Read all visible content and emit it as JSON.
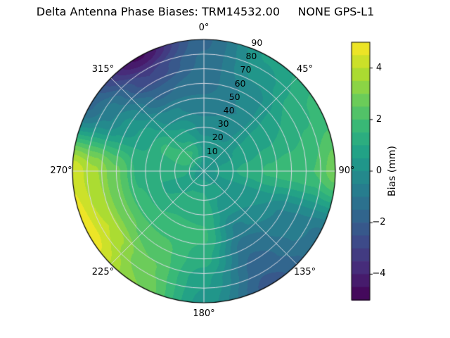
{
  "figure": {
    "title": "Delta Antenna Phase Biases: TRM14532.00     NONE GPS-L1",
    "background_color": "#ffffff"
  },
  "polar_axes": {
    "grid_color": "#dcdce6",
    "outline_color": "#000000",
    "radial_label_angle_deg": 22.5,
    "angular_labels": [
      {
        "angle_deg": 0,
        "label": "0°"
      },
      {
        "angle_deg": 45,
        "label": "45°"
      },
      {
        "angle_deg": 90,
        "label": "90°"
      },
      {
        "angle_deg": 135,
        "label": "135°"
      },
      {
        "angle_deg": 180,
        "label": "180°"
      },
      {
        "angle_deg": 225,
        "label": "225°"
      },
      {
        "angle_deg": 270,
        "label": "270°"
      },
      {
        "angle_deg": 315,
        "label": "315°"
      }
    ],
    "radial_ticks": [
      {
        "value": 10,
        "label": "10"
      },
      {
        "value": 20,
        "label": "20"
      },
      {
        "value": 30,
        "label": "30"
      },
      {
        "value": 40,
        "label": "40"
      },
      {
        "value": 50,
        "label": "50"
      },
      {
        "value": 60,
        "label": "60"
      },
      {
        "value": 70,
        "label": "70"
      },
      {
        "value": 80,
        "label": "80"
      },
      {
        "value": 90,
        "label": "90"
      }
    ]
  },
  "colorbar": {
    "label": "Bias (mm)",
    "min": -5,
    "max": 5,
    "colormap": "viridis",
    "ticks": [
      {
        "value": 4,
        "label": "4"
      },
      {
        "value": 2,
        "label": "2"
      },
      {
        "value": 0,
        "label": "0"
      },
      {
        "value": -2,
        "label": "−2"
      },
      {
        "value": -4,
        "label": "−4"
      }
    ]
  },
  "chart_data": {
    "type": "heatmap",
    "projection": "polar",
    "title": "Delta Antenna Phase Biases: TRM14532.00     NONE GPS-L1",
    "antenna": "TRM14532.00",
    "dome": "NONE",
    "signal": "GPS-L1",
    "zlabel": "Bias (mm)",
    "zlim": [
      -5,
      5
    ],
    "contour_step": 0.5,
    "colormap": "viridis",
    "azimuth_deg": [
      0,
      30,
      60,
      90,
      120,
      150,
      180,
      210,
      240,
      270,
      300,
      330
    ],
    "radius_deg": [
      0,
      15,
      30,
      45,
      60,
      75,
      90
    ],
    "values_mm": [
      [
        0.2,
        0.2,
        0.2,
        0.2,
        0.2,
        0.2,
        0.2,
        0.2,
        0.2,
        0.2,
        0.2,
        0.2
      ],
      [
        0.4,
        0.3,
        0.4,
        0.8,
        0.4,
        0.6,
        1.0,
        1.0,
        0.8,
        1.2,
        1.8,
        1.5
      ],
      [
        -0.2,
        -0.2,
        0.6,
        1.2,
        0.2,
        0.2,
        1.4,
        1.4,
        1.0,
        1.0,
        1.6,
        0.6
      ],
      [
        -0.8,
        -0.5,
        0.8,
        1.6,
        0.0,
        -0.6,
        1.6,
        1.8,
        1.6,
        1.4,
        0.8,
        -0.4
      ],
      [
        -1.2,
        -0.4,
        1.0,
        1.8,
        -0.6,
        -1.4,
        1.2,
        2.2,
        2.6,
        2.6,
        0.2,
        -1.6
      ],
      [
        -1.4,
        0.2,
        1.4,
        2.0,
        -0.8,
        -1.8,
        0.6,
        2.6,
        4.0,
        3.6,
        -0.6,
        -3.0
      ],
      [
        -1.6,
        0.6,
        1.6,
        2.8,
        -1.2,
        -2.2,
        0.3,
        3.0,
        4.8,
        4.4,
        -1.6,
        -4.6
      ]
    ]
  }
}
